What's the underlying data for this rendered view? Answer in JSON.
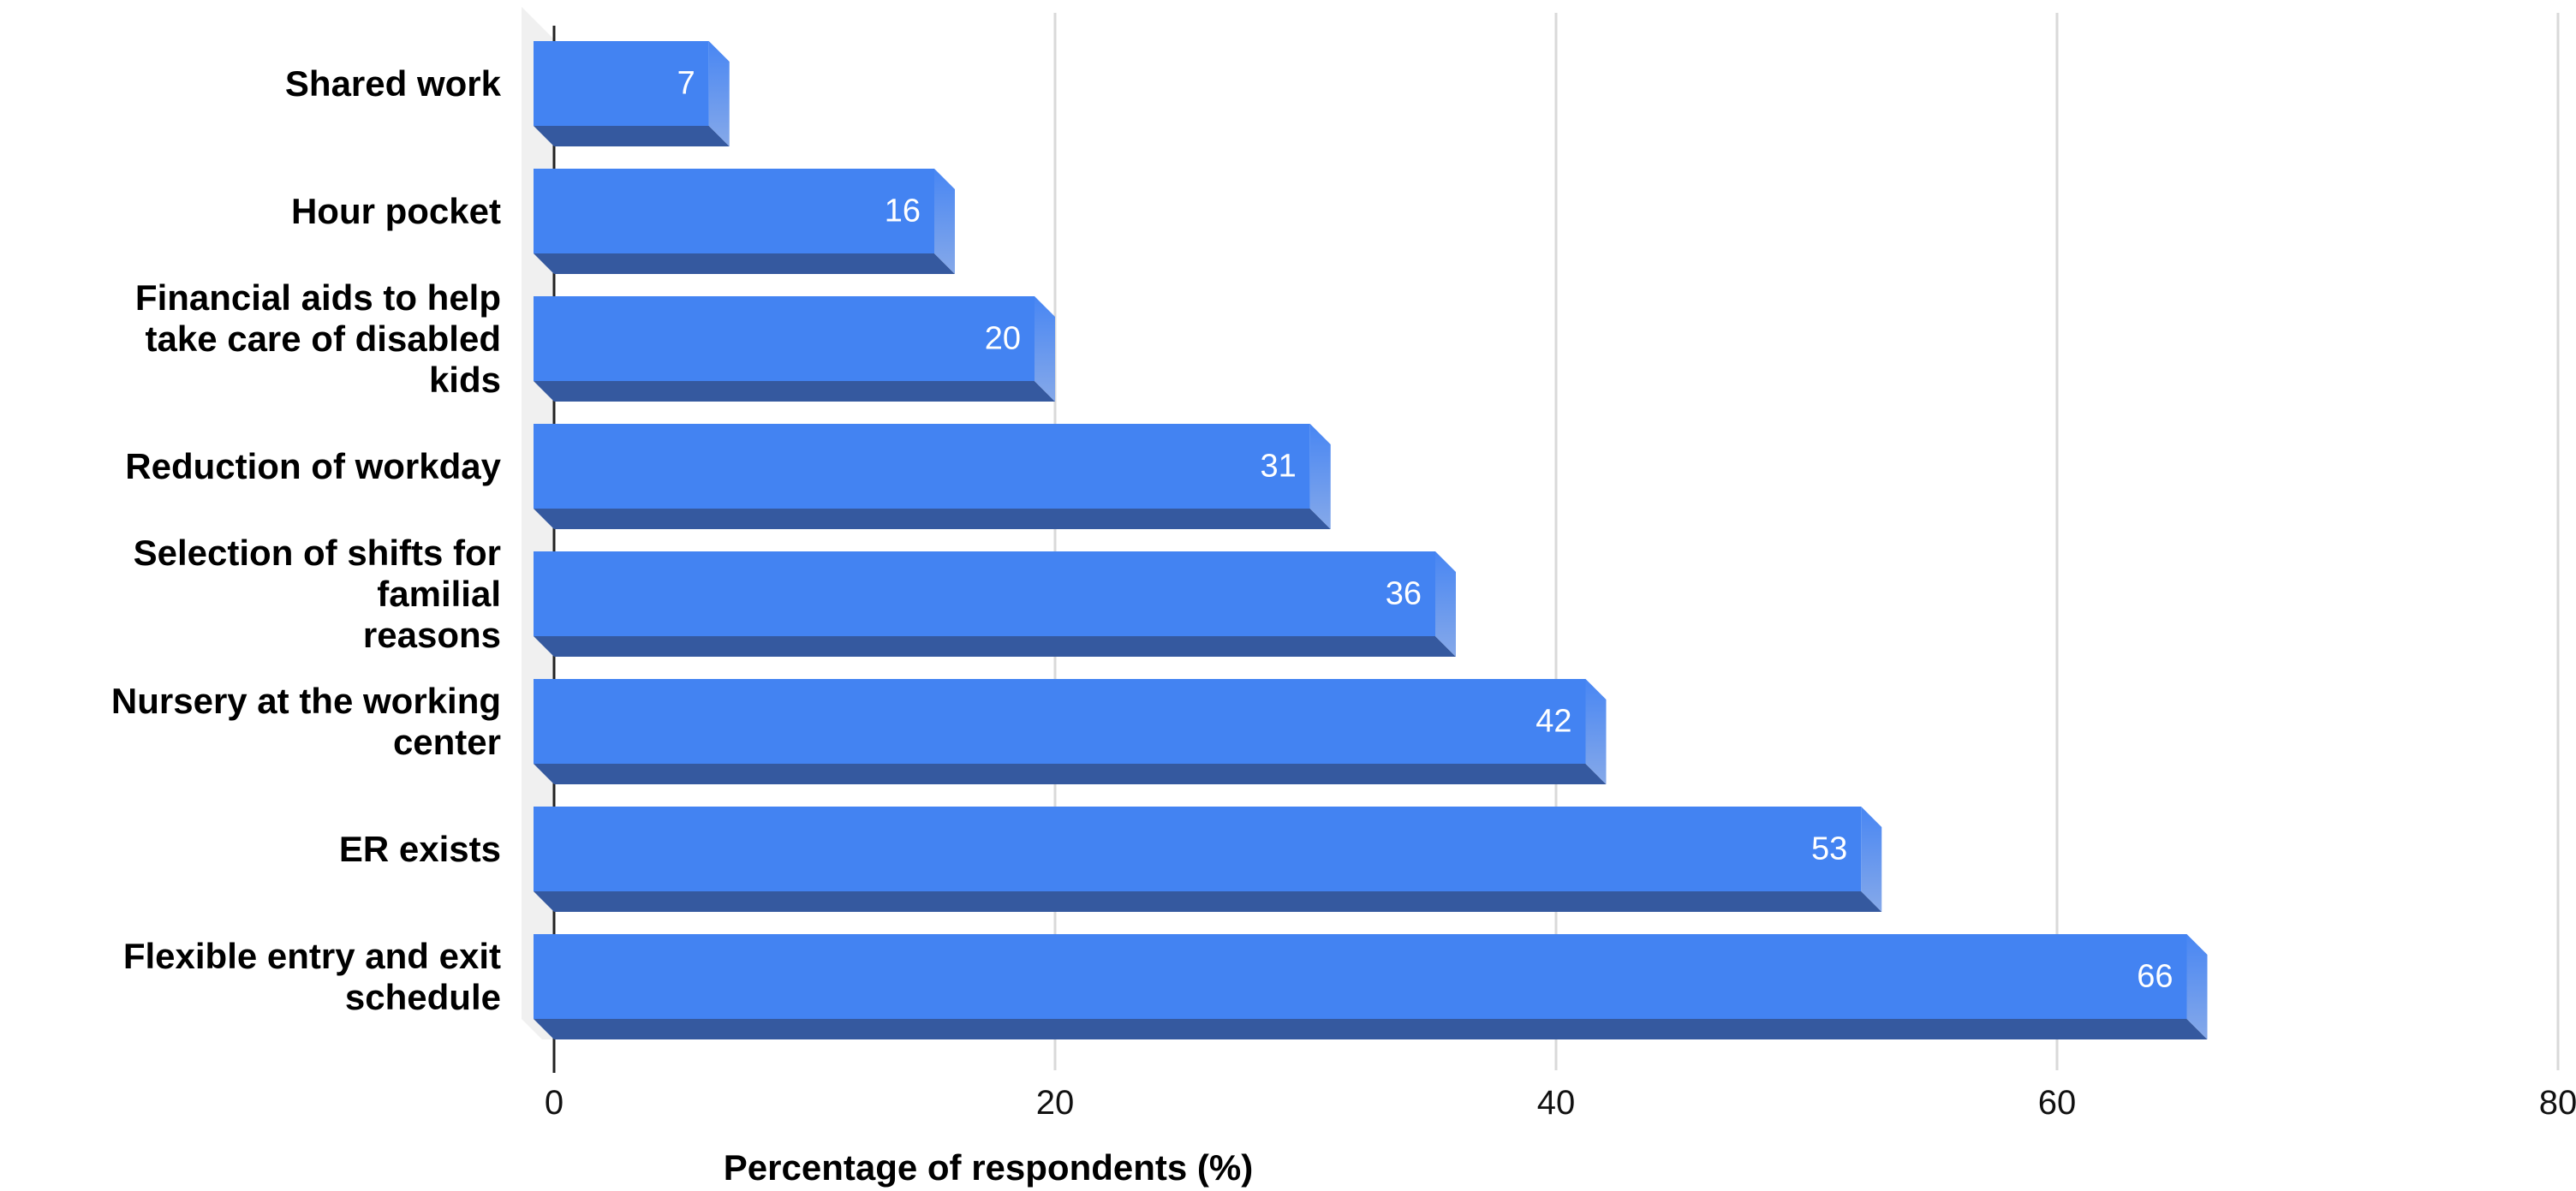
{
  "chart_data": {
    "type": "bar",
    "orientation": "horizontal",
    "bar_style": "3d",
    "categories": [
      "Shared work",
      "Hour pocket",
      "Financial aids to help\ntake care of disabled\nkids",
      "Reduction of workday",
      "Selection of shifts for familial\nreasons",
      "Nursery at the working center",
      "ER exists",
      "Flexible entry and exit\nschedule"
    ],
    "values": [
      7,
      16,
      20,
      31,
      36,
      42,
      53,
      66
    ],
    "value_labels": [
      "7",
      "16",
      "20",
      "31",
      "36",
      "42",
      "53",
      "66"
    ],
    "xlabel": "Percentage of respondents (%)",
    "ylabel": "",
    "title": "",
    "xlim": [
      0,
      80
    ],
    "x_ticks": [
      0,
      20,
      40,
      60,
      80
    ],
    "x_tick_labels": [
      "0",
      "20",
      "40",
      "60",
      "80"
    ],
    "grid": true,
    "legend": false,
    "colors": {
      "bar_front": "#4383f2",
      "bar_bottom": "#35599f",
      "bar_cap_top": "#4886f3",
      "bar_cap_bottom": "#86a9e9",
      "wall": "#f0f0f0",
      "gridline": "#d9d9d9",
      "axis_line": "#212121",
      "value_text": "#ffffff",
      "label_text": "#000000"
    }
  }
}
